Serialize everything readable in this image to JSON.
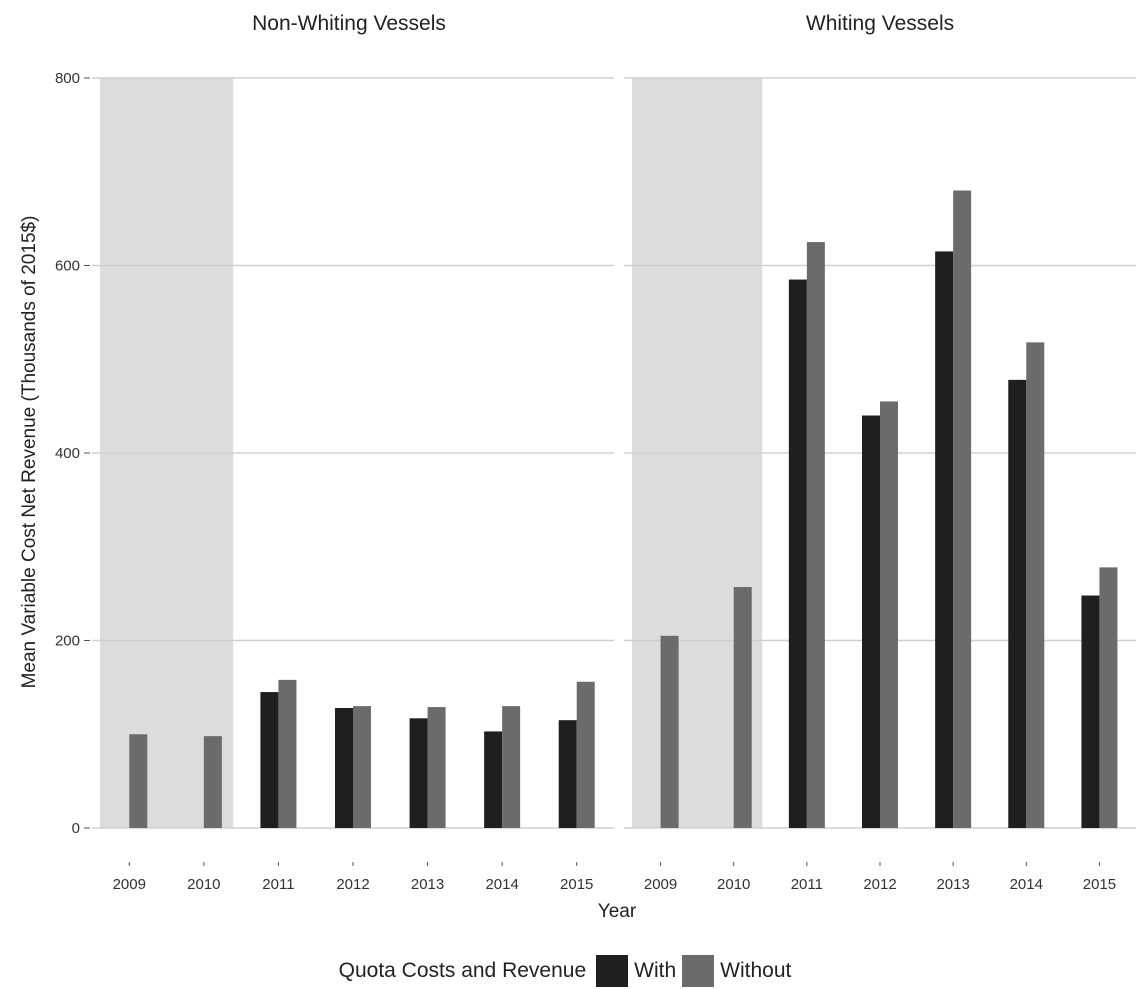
{
  "chart_data": {
    "type": "bar",
    "ylabel": "Mean Variable Cost Net Revenue (Thousands of 2015$)",
    "xlabel": "Year",
    "ylim": [
      0,
      800
    ],
    "yticks": [
      0,
      200,
      400,
      600,
      800
    ],
    "grid": true,
    "legend_placement": "bottom",
    "legend_title": "Quota Costs and Revenue",
    "series_names": [
      "With",
      "Without"
    ],
    "colors": {
      "With": "#1f1f1f",
      "Without": "#6b6b6b",
      "shade": "#dcdcdc",
      "grid": "#d0d0d0"
    },
    "shaded_years": [
      "2009",
      "2010"
    ],
    "categories": [
      "2009",
      "2010",
      "2011",
      "2012",
      "2013",
      "2014",
      "2015"
    ],
    "panels": [
      {
        "title": "Non-Whiting Vessels",
        "series": [
          {
            "name": "With",
            "values": [
              null,
              null,
              145,
              128,
              117,
              103,
              115
            ]
          },
          {
            "name": "Without",
            "values": [
              100,
              98,
              158,
              130,
              129,
              130,
              156
            ]
          }
        ]
      },
      {
        "title": "Whiting Vessels",
        "series": [
          {
            "name": "With",
            "values": [
              null,
              null,
              585,
              440,
              615,
              478,
              248
            ]
          },
          {
            "name": "Without",
            "values": [
              205,
              257,
              625,
              455,
              680,
              518,
              278
            ]
          }
        ]
      }
    ]
  }
}
